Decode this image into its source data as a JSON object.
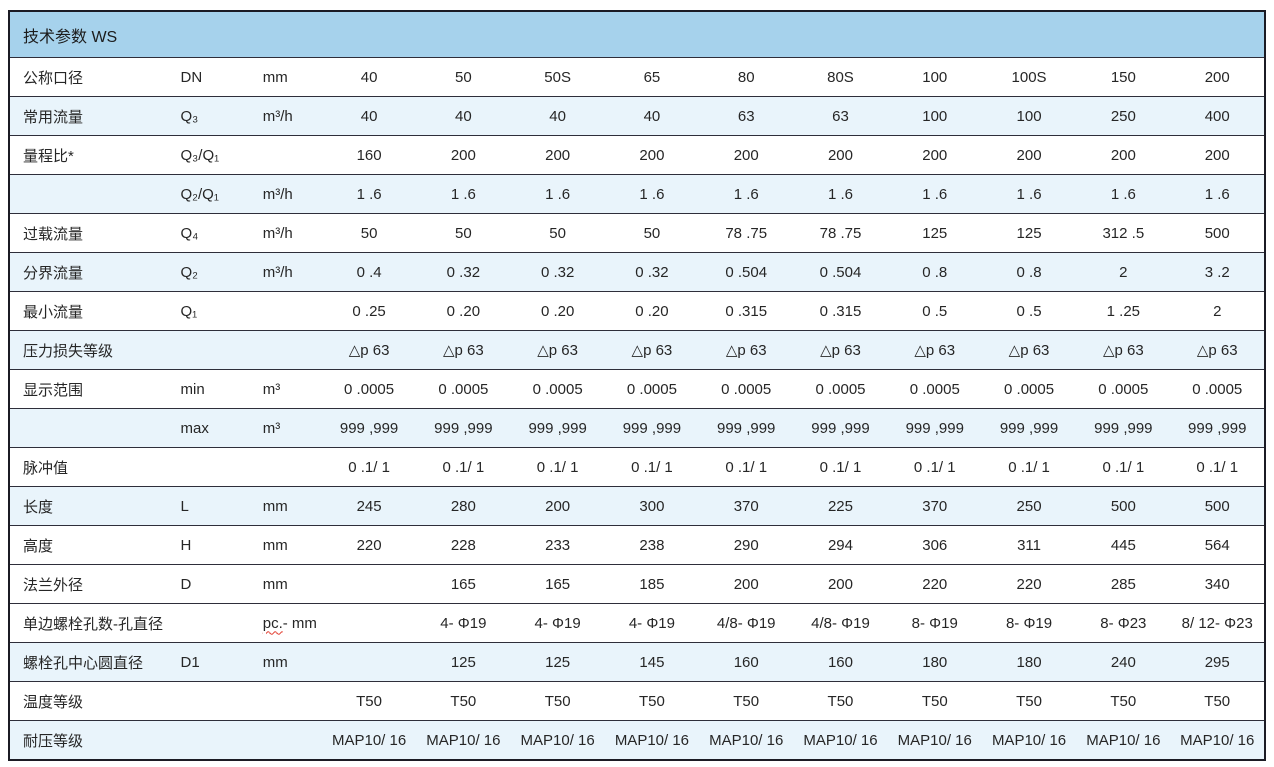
{
  "table": {
    "title": "技术参数 WS",
    "accent_colors": {
      "title_bar": "#a6d2ec",
      "shaded_row": "#e9f4fb",
      "border": "#1b1b24",
      "squiggle": "#e23b2e"
    },
    "rows": [
      {
        "label": "公称口径",
        "symbol": "DN",
        "unit": "mm",
        "shaded": false,
        "values": [
          "40",
          "50",
          "50S",
          "65",
          "80",
          "80S",
          "100",
          "100S",
          "150",
          "200"
        ]
      },
      {
        "label": "常用流量",
        "symbol": "Q₃",
        "unit": "m³/h",
        "shaded": true,
        "values": [
          "40",
          "40",
          "40",
          "40",
          "63",
          "63",
          "100",
          "100",
          "250",
          "400"
        ]
      },
      {
        "label": "量程比*",
        "symbol": "Q₃/Q₁",
        "unit": "",
        "shaded": false,
        "values": [
          "160",
          "200",
          "200",
          "200",
          "200",
          "200",
          "200",
          "200",
          "200",
          "200"
        ]
      },
      {
        "label": "",
        "symbol": "Q₂/Q₁",
        "unit": "m³/h",
        "shaded": true,
        "values": [
          "1 .6",
          "1 .6",
          "1 .6",
          "1 .6",
          "1 .6",
          "1 .6",
          "1 .6",
          "1 .6",
          "1 .6",
          "1 .6"
        ]
      },
      {
        "label": "过载流量",
        "symbol": "Q₄",
        "unit": "m³/h",
        "shaded": false,
        "values": [
          "50",
          "50",
          "50",
          "50",
          "78 .75",
          "78 .75",
          "125",
          "125",
          "312 .5",
          "500"
        ]
      },
      {
        "label": "分界流量",
        "symbol": "Q₂",
        "unit": "m³/h",
        "shaded": true,
        "values": [
          "0 .4",
          "0 .32",
          "0 .32",
          "0 .32",
          "0 .504",
          "0 .504",
          "0 .8",
          "0 .8",
          "2",
          "3 .2"
        ]
      },
      {
        "label": "最小流量",
        "symbol": "Q₁",
        "unit": "",
        "shaded": false,
        "values": [
          "0 .25",
          "0 .20",
          "0 .20",
          "0 .20",
          "0 .315",
          "0 .315",
          "0 .5",
          "0 .5",
          "1 .25",
          "2"
        ]
      },
      {
        "label": "压力损失等级",
        "symbol": "",
        "unit": "",
        "shaded": true,
        "values": [
          "△p 63",
          "△p 63",
          "△p 63",
          "△p 63",
          "△p 63",
          "△p 63",
          "△p 63",
          "△p 63",
          "△p 63",
          "△p 63"
        ]
      },
      {
        "label": "显示范围",
        "symbol": "min",
        "unit": "m³",
        "shaded": false,
        "values": [
          "0 .0005",
          "0 .0005",
          "0 .0005",
          "0 .0005",
          "0 .0005",
          "0 .0005",
          "0 .0005",
          "0 .0005",
          "0 .0005",
          "0 .0005"
        ]
      },
      {
        "label": "",
        "symbol": "max",
        "unit": "m³",
        "shaded": true,
        "values": [
          "999 ,999",
          "999 ,999",
          "999 ,999",
          "999 ,999",
          "999 ,999",
          "999 ,999",
          "999 ,999",
          "999 ,999",
          "999 ,999",
          "999 ,999"
        ]
      },
      {
        "label": "脉冲值",
        "symbol": "",
        "unit": "",
        "shaded": false,
        "values": [
          "0 .1/ 1",
          "0 .1/ 1",
          "0 .1/ 1",
          "0 .1/ 1",
          "0 .1/ 1",
          "0 .1/ 1",
          "0 .1/ 1",
          "0 .1/ 1",
          "0 .1/ 1",
          "0 .1/ 1"
        ]
      },
      {
        "label": "长度",
        "symbol": "L",
        "unit": "mm",
        "shaded": true,
        "values": [
          "245",
          "280",
          "200",
          "300",
          "370",
          "225",
          "370",
          "250",
          "500",
          "500"
        ]
      },
      {
        "label": "高度",
        "symbol": "H",
        "unit": "mm",
        "shaded": false,
        "values": [
          "220",
          "228",
          "233",
          "238",
          "290",
          "294",
          "306",
          "311",
          "445",
          "564"
        ]
      },
      {
        "label": "法兰外径",
        "symbol": "D",
        "unit": "mm",
        "shaded": false,
        "values": [
          "",
          "165",
          "165",
          "185",
          "200",
          "200",
          "220",
          "220",
          "285",
          "340"
        ]
      },
      {
        "label": "单边螺栓孔数-孔直径",
        "symbol": "",
        "unit_wavy": "pc.",
        "unit_rest": "- mm",
        "unit": "",
        "shaded": false,
        "values": [
          "",
          "4- Φ19",
          "4- Φ19",
          "4- Φ19",
          "4/8- Φ19",
          "4/8- Φ19",
          "8- Φ19",
          "8- Φ19",
          "8- Φ23",
          "8/ 12- Φ23"
        ]
      },
      {
        "label": "螺栓孔中心圆直径",
        "symbol": "D1",
        "unit": "mm",
        "shaded": true,
        "values": [
          "",
          "125",
          "125",
          "145",
          "160",
          "160",
          "180",
          "180",
          "240",
          "295"
        ]
      },
      {
        "label": "温度等级",
        "symbol": "",
        "unit": "",
        "shaded": false,
        "values": [
          "T50",
          "T50",
          "T50",
          "T50",
          "T50",
          "T50",
          "T50",
          "T50",
          "T50",
          "T50"
        ]
      },
      {
        "label": "耐压等级",
        "symbol": "",
        "unit": "",
        "shaded": true,
        "values": [
          "MAP10/ 16",
          "MAP10/ 16",
          "MAP10/ 16",
          "MAP10/ 16",
          "MAP10/ 16",
          "MAP10/ 16",
          "MAP10/ 16",
          "MAP10/ 16",
          "MAP10/ 16",
          "MAP10/ 16"
        ]
      }
    ]
  }
}
